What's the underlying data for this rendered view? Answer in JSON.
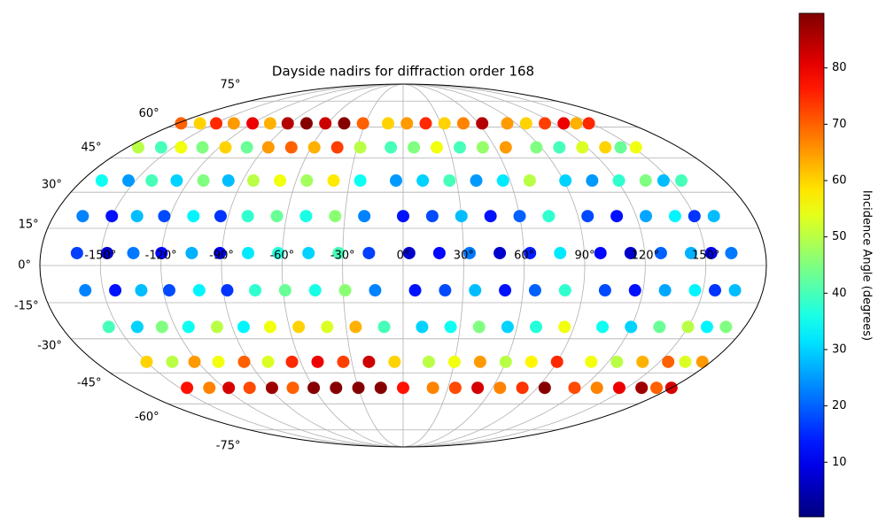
{
  "chart_data": {
    "type": "scatter",
    "projection": "mollweide",
    "grid": true,
    "title": "Dayside nadirs for diffraction order 168",
    "xticks": [
      {
        "value": -150,
        "label": "-150°"
      },
      {
        "value": -120,
        "label": "-120°"
      },
      {
        "value": -90,
        "label": "-90°"
      },
      {
        "value": -60,
        "label": "-60°"
      },
      {
        "value": -30,
        "label": "-30°"
      },
      {
        "value": 0,
        "label": "0°"
      },
      {
        "value": 30,
        "label": "30°"
      },
      {
        "value": 60,
        "label": "60°"
      },
      {
        "value": 90,
        "label": "90°"
      },
      {
        "value": 120,
        "label": "120°"
      },
      {
        "value": 150,
        "label": "150°"
      }
    ],
    "yticks": [
      {
        "value": -75,
        "label": "-75°"
      },
      {
        "value": -60,
        "label": "-60°"
      },
      {
        "value": -45,
        "label": "-45°"
      },
      {
        "value": -30,
        "label": "-30°"
      },
      {
        "value": -15,
        "label": "-15°"
      },
      {
        "value": 0,
        "label": "0°"
      },
      {
        "value": 15,
        "label": "15°"
      },
      {
        "value": 30,
        "label": "30°"
      },
      {
        "value": 45,
        "label": "45°"
      },
      {
        "value": 60,
        "label": "60°"
      },
      {
        "value": 75,
        "label": "75°"
      }
    ],
    "colorbar": {
      "label": "Incidence Angle (degrees)",
      "colormap": "jet",
      "lim": [
        0.3,
        89.7
      ],
      "ticks": [
        10,
        20,
        30,
        40,
        50,
        60,
        70,
        80
      ]
    },
    "series": [
      {
        "x": [
          -177,
          -173,
          -169,
          -165,
          -162,
          -159,
          -155,
          -150,
          -145
        ],
        "y": [
          62,
          50,
          35,
          20,
          5,
          -10,
          -25,
          -40,
          -52
        ],
        "values": [
          70,
          50,
          35,
          23,
          17,
          23,
          40,
          60,
          77
        ]
      },
      {
        "x": [
          -162,
          -158,
          -154,
          -150,
          -147,
          -144,
          -140,
          -135,
          -130
        ],
        "y": [
          62,
          50,
          35,
          20,
          5,
          -10,
          -25,
          -40,
          -52
        ],
        "values": [
          60,
          40,
          25,
          13,
          7,
          13,
          30,
          50,
          67
        ]
      },
      {
        "x": [
          -149,
          -145,
          -141,
          -137,
          -134,
          -131,
          -127,
          -122,
          -117
        ],
        "y": [
          62,
          50,
          35,
          20,
          5,
          -10,
          -25,
          -40,
          -52
        ],
        "values": [
          75,
          55,
          40,
          28,
          22,
          28,
          45,
          65,
          82
        ]
      },
      {
        "x": [
          -135,
          -131,
          -127,
          -123,
          -120,
          -117,
          -113,
          -108,
          -103
        ],
        "y": [
          62,
          50,
          35,
          20,
          5,
          -10,
          -25,
          -40,
          -52
        ],
        "values": [
          65,
          45,
          30,
          18,
          12,
          18,
          35,
          55,
          72
        ]
      },
      {
        "x": [
          -120,
          -116,
          -112,
          -108,
          -105,
          -102,
          -98,
          -93,
          -88
        ],
        "y": [
          62,
          50,
          35,
          20,
          5,
          -10,
          -25,
          -40,
          -52
        ],
        "values": [
          80,
          60,
          45,
          33,
          27,
          33,
          50,
          70,
          87
        ]
      },
      {
        "x": [
          -106,
          -102,
          -98,
          -94,
          -91,
          -88,
          -84,
          -79,
          -74
        ],
        "y": [
          62,
          50,
          35,
          20,
          5,
          -10,
          -25,
          -40,
          -52
        ],
        "values": [
          63,
          43,
          28,
          16,
          10,
          16,
          33,
          53,
          70
        ]
      },
      {
        "x": [
          -92,
          -88,
          -84,
          -80,
          -77,
          -74,
          -70,
          -65,
          -60
        ],
        "y": [
          62,
          50,
          35,
          20,
          5,
          -10,
          -25,
          -40,
          -52
        ],
        "values": [
          85,
          65,
          50,
          38,
          32,
          38,
          55,
          75,
          89
        ]
      },
      {
        "x": [
          -77,
          -73,
          -69,
          -65,
          -62,
          -59,
          -55,
          -50,
          -45
        ],
        "y": [
          62,
          50,
          35,
          20,
          5,
          -10,
          -25,
          -40,
          -52
        ],
        "values": [
          89,
          70,
          55,
          43,
          37,
          43,
          60,
          80,
          89
        ]
      },
      {
        "x": [
          -62,
          -58,
          -54,
          -50,
          -47,
          -44,
          -40,
          -35,
          -30
        ],
        "y": [
          62,
          50,
          35,
          20,
          5,
          -10,
          -25,
          -40,
          -52
        ],
        "values": [
          83,
          63,
          48,
          36,
          30,
          36,
          53,
          73,
          89
        ]
      },
      {
        "x": [
          -47,
          -43,
          -39,
          -35,
          -32,
          -29,
          -25,
          -20,
          -15
        ],
        "y": [
          62,
          50,
          35,
          20,
          5,
          -10,
          -25,
          -40,
          -52
        ],
        "values": [
          89,
          73,
          58,
          46,
          40,
          46,
          63,
          83,
          89
        ]
      },
      {
        "x": [
          -32,
          -28,
          -24,
          -20,
          -17,
          -14,
          -10,
          -5,
          0
        ],
        "y": [
          62,
          50,
          35,
          20,
          5,
          -10,
          -25,
          -40,
          -52
        ],
        "values": [
          70,
          50,
          35,
          23,
          17,
          23,
          40,
          60,
          77
        ]
      },
      {
        "x": [
          -12,
          -8,
          -4,
          0,
          3,
          6,
          10,
          15,
          20
        ],
        "y": [
          62,
          50,
          35,
          20,
          5,
          -10,
          -25,
          -40,
          -52
        ],
        "values": [
          60,
          40,
          25,
          13,
          7,
          13,
          30,
          50,
          67
        ]
      },
      {
        "x": [
          3,
          7,
          11,
          15,
          18,
          21,
          25,
          30,
          35
        ],
        "y": [
          62,
          50,
          35,
          20,
          5,
          -10,
          -25,
          -40,
          -52
        ],
        "values": [
          65,
          45,
          30,
          18,
          12,
          18,
          35,
          55,
          72
        ]
      },
      {
        "x": [
          18,
          22,
          26,
          30,
          33,
          36,
          40,
          45,
          50
        ],
        "y": [
          62,
          50,
          35,
          20,
          5,
          -10,
          -25,
          -40,
          -52
        ],
        "values": [
          75,
          55,
          40,
          28,
          22,
          28,
          45,
          65,
          82
        ]
      },
      {
        "x": [
          33,
          37,
          41,
          45,
          48,
          51,
          55,
          60,
          65
        ],
        "y": [
          62,
          50,
          35,
          20,
          5,
          -10,
          -25,
          -40,
          -52
        ],
        "values": [
          60,
          40,
          25,
          13,
          7,
          13,
          30,
          50,
          67
        ]
      },
      {
        "x": [
          48,
          52,
          56,
          60,
          63,
          66,
          70,
          75,
          80
        ],
        "y": [
          62,
          50,
          35,
          20,
          5,
          -10,
          -25,
          -40,
          -52
        ],
        "values": [
          67,
          47,
          32,
          20,
          14,
          20,
          37,
          57,
          74
        ]
      },
      {
        "x": [
          63,
          67,
          71,
          75,
          78,
          81,
          85,
          90,
          95
        ],
        "y": [
          62,
          50,
          35,
          20,
          5,
          -10,
          -25,
          -40,
          -52
        ],
        "values": [
          85,
          65,
          50,
          38,
          32,
          38,
          55,
          75,
          89
        ]
      },
      {
        "x": [
          83,
          87,
          91,
          95,
          98,
          101,
          105,
          110,
          115
        ],
        "y": [
          62,
          50,
          35,
          20,
          5,
          -10,
          -25,
          -40,
          -52
        ],
        "values": [
          65,
          45,
          30,
          18,
          12,
          18,
          35,
          55,
          72
        ]
      },
      {
        "x": [
          98,
          102,
          106,
          110,
          113,
          116,
          120,
          125,
          130
        ],
        "y": [
          62,
          50,
          35,
          20,
          5,
          -10,
          -25,
          -40,
          -52
        ],
        "values": [
          60,
          40,
          25,
          13,
          7,
          13,
          30,
          50,
          67
        ]
      },
      {
        "x": [
          113,
          117,
          121,
          125,
          128,
          131,
          135,
          140,
          145
        ],
        "y": [
          62,
          50,
          35,
          20,
          5,
          -10,
          -25,
          -40,
          -52
        ],
        "values": [
          73,
          53,
          38,
          26,
          20,
          26,
          43,
          63,
          80
        ]
      },
      {
        "x": [
          128,
          132,
          136,
          140,
          143,
          146,
          150,
          155,
          160
        ],
        "y": [
          62,
          50,
          35,
          20,
          5,
          -10,
          -25,
          -40,
          -52
        ],
        "values": [
          80,
          60,
          45,
          33,
          27,
          33,
          50,
          70,
          87
        ]
      },
      {
        "x": [
          138,
          142,
          146,
          150,
          153,
          156,
          160,
          165,
          170
        ],
        "y": [
          62,
          50,
          35,
          20,
          5,
          -10,
          -25,
          -40,
          -52
        ],
        "values": [
          63,
          43,
          28,
          16,
          10,
          16,
          33,
          53,
          70
        ]
      },
      {
        "x": [
          148,
          152,
          156,
          160,
          163,
          166,
          170,
          175,
          180
        ],
        "y": [
          62,
          50,
          35,
          20,
          5,
          -10,
          -25,
          -40,
          -52
        ],
        "values": [
          75,
          55,
          40,
          28,
          22,
          28,
          45,
          65,
          82
        ]
      }
    ]
  }
}
